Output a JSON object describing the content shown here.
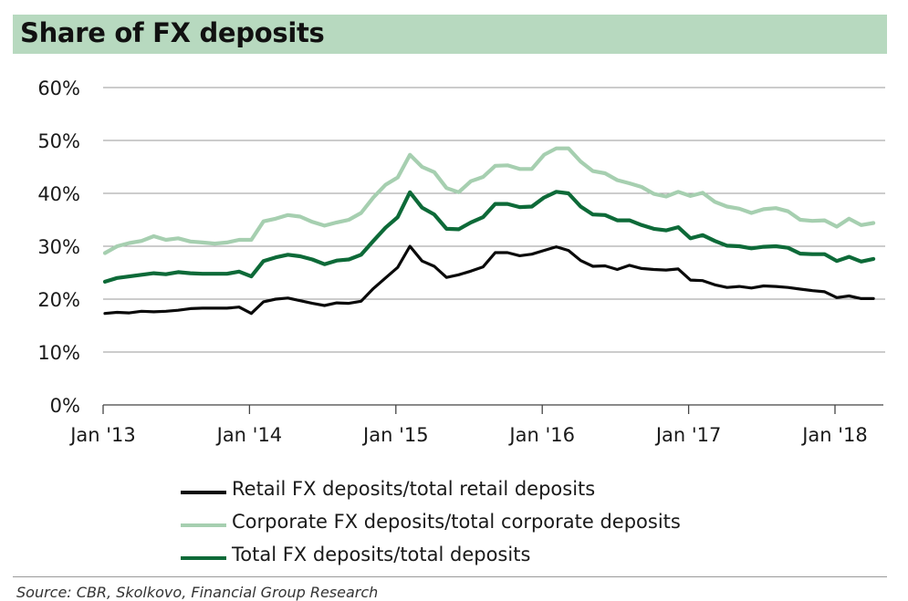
{
  "title": "Share of FX deposits",
  "source": "Source: CBR, Skolkovo, Financial Group Research",
  "colors": {
    "title_bg": "#b7d9bf",
    "retail": "#0a0a0a",
    "corporate": "#a6cfb0",
    "total": "#0d6a38",
    "grid": "#9a9a9a"
  },
  "chart_data": {
    "type": "line",
    "title": "Share of FX deposits",
    "x_start": "Jan 2013",
    "x_step": "month",
    "x_ticks": [
      "Jan '13",
      "Jan '14",
      "Jan '15",
      "Jan '16",
      "Jan '17",
      "Jan '18"
    ],
    "y_ticks": [
      "0%",
      "10%",
      "20%",
      "30%",
      "40%",
      "50%",
      "60%"
    ],
    "ylim": [
      0,
      60
    ],
    "y_unit": "%",
    "grid": true,
    "legend_position": "bottom",
    "series": [
      {
        "name": "Retail FX deposits/total retail deposits",
        "color": "#0a0a0a",
        "values": [
          17.3,
          17.5,
          17.4,
          17.7,
          17.6,
          17.7,
          17.9,
          18.2,
          18.3,
          18.3,
          18.3,
          18.5,
          17.3,
          19.5,
          20.0,
          20.2,
          19.7,
          19.2,
          18.8,
          19.3,
          19.2,
          19.6,
          22.0,
          24.0,
          26.0,
          30.0,
          27.2,
          26.2,
          24.1,
          24.6,
          25.3,
          26.1,
          28.8,
          28.8,
          28.2,
          28.5,
          29.2,
          29.9,
          29.2,
          27.3,
          26.2,
          26.3,
          25.6,
          26.4,
          25.8,
          25.6,
          25.5,
          25.7,
          23.6,
          23.5,
          22.7,
          22.2,
          22.4,
          22.1,
          22.5,
          22.4,
          22.2,
          21.9,
          21.6,
          21.4,
          20.3,
          20.6,
          20.1,
          20.1
        ]
      },
      {
        "name": "Corporate FX deposits/total corporate deposits",
        "color": "#a6cfb0",
        "values": [
          28.7,
          30.0,
          30.6,
          31.0,
          31.9,
          31.2,
          31.5,
          30.9,
          30.7,
          30.5,
          30.7,
          31.2,
          31.2,
          34.7,
          35.2,
          35.9,
          35.6,
          34.6,
          33.9,
          34.5,
          35.0,
          36.3,
          39.2,
          41.6,
          43.0,
          47.3,
          45.0,
          44.0,
          41.0,
          40.2,
          42.3,
          43.1,
          45.2,
          45.3,
          44.6,
          44.6,
          47.3,
          48.5,
          48.5,
          46.0,
          44.2,
          43.8,
          42.5,
          41.9,
          41.2,
          39.9,
          39.4,
          40.3,
          39.5,
          40.1,
          38.4,
          37.5,
          37.1,
          36.3,
          37.0,
          37.2,
          36.6,
          35.0,
          34.8,
          34.9,
          33.7,
          35.2,
          34.0,
          34.4
        ]
      },
      {
        "name": "Total FX  deposits/total deposits",
        "color": "#0d6a38",
        "values": [
          23.3,
          24.0,
          24.3,
          24.6,
          24.9,
          24.7,
          25.1,
          24.9,
          24.8,
          24.8,
          24.8,
          25.2,
          24.3,
          27.2,
          27.9,
          28.4,
          28.1,
          27.5,
          26.6,
          27.3,
          27.5,
          28.4,
          31.0,
          33.5,
          35.5,
          40.2,
          37.3,
          36.0,
          33.3,
          33.2,
          34.5,
          35.5,
          38.0,
          38.0,
          37.4,
          37.5,
          39.2,
          40.3,
          40.0,
          37.5,
          36.0,
          35.9,
          34.9,
          34.9,
          34.0,
          33.3,
          33.0,
          33.6,
          31.5,
          32.1,
          31.0,
          30.1,
          30.0,
          29.6,
          29.9,
          30.0,
          29.7,
          28.6,
          28.5,
          28.5,
          27.2,
          28.0,
          27.1,
          27.6
        ]
      }
    ]
  }
}
